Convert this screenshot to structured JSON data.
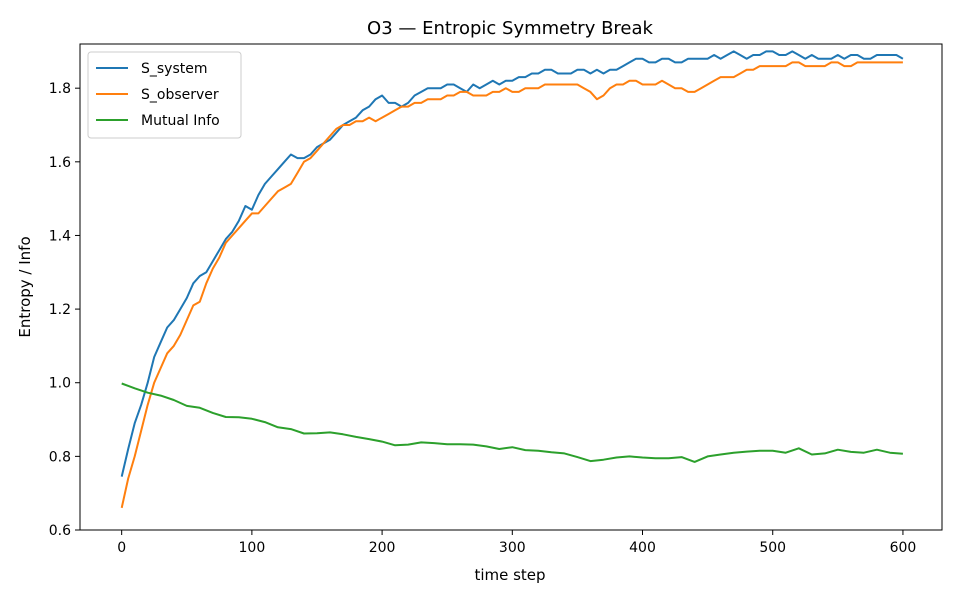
{
  "chart_data": {
    "type": "line",
    "title": "O3 — Entropic Symmetry Break",
    "xlabel": "time step",
    "ylabel": "Entropy / Info",
    "xlim": [
      -32,
      630
    ],
    "ylim": [
      0.6,
      1.92
    ],
    "xticks": [
      0,
      100,
      200,
      300,
      400,
      500,
      600
    ],
    "yticks": [
      0.6,
      0.8,
      1.0,
      1.2,
      1.4,
      1.6,
      1.8
    ],
    "xtick_labels": [
      "0",
      "100",
      "200",
      "300",
      "400",
      "500",
      "600"
    ],
    "ytick_labels": [
      "0.6",
      "0.8",
      "1.0",
      "1.2",
      "1.4",
      "1.6",
      "1.8"
    ],
    "grid": false,
    "legend_position": "upper-left",
    "series": [
      {
        "name": "S_system",
        "color": "#1f77b4",
        "x": [
          0,
          5,
          10,
          15,
          20,
          25,
          30,
          35,
          40,
          45,
          50,
          55,
          60,
          65,
          70,
          75,
          80,
          85,
          90,
          95,
          100,
          105,
          110,
          115,
          120,
          125,
          130,
          135,
          140,
          145,
          150,
          155,
          160,
          165,
          170,
          175,
          180,
          185,
          190,
          195,
          200,
          205,
          210,
          215,
          220,
          225,
          230,
          235,
          240,
          245,
          250,
          255,
          260,
          265,
          270,
          275,
          280,
          285,
          290,
          295,
          300,
          305,
          310,
          315,
          320,
          325,
          330,
          335,
          340,
          345,
          350,
          355,
          360,
          365,
          370,
          375,
          380,
          385,
          390,
          395,
          400,
          405,
          410,
          415,
          420,
          425,
          430,
          435,
          440,
          445,
          450,
          455,
          460,
          465,
          470,
          475,
          480,
          485,
          490,
          495,
          500,
          505,
          510,
          515,
          520,
          525,
          530,
          535,
          540,
          545,
          550,
          555,
          560,
          565,
          570,
          575,
          580,
          585,
          590,
          595,
          600
        ],
        "values": [
          0.745,
          0.82,
          0.89,
          0.94,
          1.0,
          1.07,
          1.11,
          1.15,
          1.17,
          1.2,
          1.23,
          1.27,
          1.29,
          1.3,
          1.33,
          1.36,
          1.39,
          1.41,
          1.44,
          1.48,
          1.47,
          1.51,
          1.54,
          1.56,
          1.58,
          1.6,
          1.62,
          1.61,
          1.61,
          1.62,
          1.64,
          1.65,
          1.66,
          1.68,
          1.7,
          1.71,
          1.72,
          1.74,
          1.75,
          1.77,
          1.78,
          1.76,
          1.76,
          1.75,
          1.76,
          1.78,
          1.79,
          1.8,
          1.8,
          1.8,
          1.81,
          1.81,
          1.8,
          1.79,
          1.81,
          1.8,
          1.81,
          1.82,
          1.81,
          1.82,
          1.82,
          1.83,
          1.83,
          1.84,
          1.84,
          1.85,
          1.85,
          1.84,
          1.84,
          1.84,
          1.85,
          1.85,
          1.84,
          1.85,
          1.84,
          1.85,
          1.85,
          1.86,
          1.87,
          1.88,
          1.88,
          1.87,
          1.87,
          1.88,
          1.88,
          1.87,
          1.87,
          1.88,
          1.88,
          1.88,
          1.88,
          1.89,
          1.88,
          1.89,
          1.9,
          1.89,
          1.88,
          1.89,
          1.89,
          1.9,
          1.9,
          1.89,
          1.89,
          1.9,
          1.89,
          1.88,
          1.89,
          1.88,
          1.88,
          1.88,
          1.89,
          1.88,
          1.89,
          1.89,
          1.88,
          1.88,
          1.89,
          1.89,
          1.89,
          1.89,
          1.88
        ]
      },
      {
        "name": "S_observer",
        "color": "#ff7f0e",
        "x": [
          0,
          5,
          10,
          15,
          20,
          25,
          30,
          35,
          40,
          45,
          50,
          55,
          60,
          65,
          70,
          75,
          80,
          85,
          90,
          95,
          100,
          105,
          110,
          115,
          120,
          125,
          130,
          135,
          140,
          145,
          150,
          155,
          160,
          165,
          170,
          175,
          180,
          185,
          190,
          195,
          200,
          205,
          210,
          215,
          220,
          225,
          230,
          235,
          240,
          245,
          250,
          255,
          260,
          265,
          270,
          275,
          280,
          285,
          290,
          295,
          300,
          305,
          310,
          315,
          320,
          325,
          330,
          335,
          340,
          345,
          350,
          355,
          360,
          365,
          370,
          375,
          380,
          385,
          390,
          395,
          400,
          405,
          410,
          415,
          420,
          425,
          430,
          435,
          440,
          445,
          450,
          455,
          460,
          465,
          470,
          475,
          480,
          485,
          490,
          495,
          500,
          505,
          510,
          515,
          520,
          525,
          530,
          535,
          540,
          545,
          550,
          555,
          560,
          565,
          570,
          575,
          580,
          585,
          590,
          595,
          600
        ],
        "values": [
          0.66,
          0.74,
          0.8,
          0.87,
          0.94,
          1.0,
          1.04,
          1.08,
          1.1,
          1.13,
          1.17,
          1.21,
          1.22,
          1.27,
          1.31,
          1.34,
          1.38,
          1.4,
          1.42,
          1.44,
          1.46,
          1.46,
          1.48,
          1.5,
          1.52,
          1.53,
          1.54,
          1.57,
          1.6,
          1.61,
          1.63,
          1.65,
          1.67,
          1.69,
          1.7,
          1.7,
          1.71,
          1.71,
          1.72,
          1.71,
          1.72,
          1.73,
          1.74,
          1.75,
          1.75,
          1.76,
          1.76,
          1.77,
          1.77,
          1.77,
          1.78,
          1.78,
          1.79,
          1.79,
          1.78,
          1.78,
          1.78,
          1.79,
          1.79,
          1.8,
          1.79,
          1.79,
          1.8,
          1.8,
          1.8,
          1.81,
          1.81,
          1.81,
          1.81,
          1.81,
          1.81,
          1.8,
          1.79,
          1.77,
          1.78,
          1.8,
          1.81,
          1.81,
          1.82,
          1.82,
          1.81,
          1.81,
          1.81,
          1.82,
          1.81,
          1.8,
          1.8,
          1.79,
          1.79,
          1.8,
          1.81,
          1.82,
          1.83,
          1.83,
          1.83,
          1.84,
          1.85,
          1.85,
          1.86,
          1.86,
          1.86,
          1.86,
          1.86,
          1.87,
          1.87,
          1.86,
          1.86,
          1.86,
          1.86,
          1.87,
          1.87,
          1.86,
          1.86,
          1.87,
          1.87,
          1.87,
          1.87,
          1.87,
          1.87,
          1.87,
          1.87
        ]
      },
      {
        "name": "Mutual Info",
        "color": "#2ca02c",
        "x": [
          0,
          10,
          20,
          30,
          40,
          50,
          60,
          70,
          80,
          90,
          100,
          110,
          120,
          130,
          140,
          150,
          160,
          170,
          180,
          190,
          200,
          210,
          220,
          230,
          240,
          250,
          260,
          270,
          280,
          290,
          300,
          310,
          320,
          330,
          340,
          350,
          360,
          370,
          380,
          390,
          400,
          410,
          420,
          430,
          440,
          450,
          460,
          470,
          480,
          490,
          500,
          510,
          520,
          530,
          540,
          550,
          560,
          570,
          580,
          590,
          600
        ],
        "values": [
          0.998,
          0.985,
          0.973,
          0.965,
          0.953,
          0.937,
          0.932,
          0.918,
          0.907,
          0.906,
          0.902,
          0.893,
          0.879,
          0.874,
          0.862,
          0.863,
          0.865,
          0.86,
          0.853,
          0.847,
          0.84,
          0.83,
          0.832,
          0.838,
          0.836,
          0.833,
          0.833,
          0.832,
          0.827,
          0.82,
          0.825,
          0.817,
          0.815,
          0.811,
          0.808,
          0.798,
          0.787,
          0.791,
          0.797,
          0.8,
          0.797,
          0.795,
          0.795,
          0.798,
          0.785,
          0.8,
          0.805,
          0.81,
          0.813,
          0.815,
          0.815,
          0.81,
          0.822,
          0.805,
          0.808,
          0.818,
          0.812,
          0.81,
          0.818,
          0.81,
          0.807
        ]
      }
    ]
  }
}
